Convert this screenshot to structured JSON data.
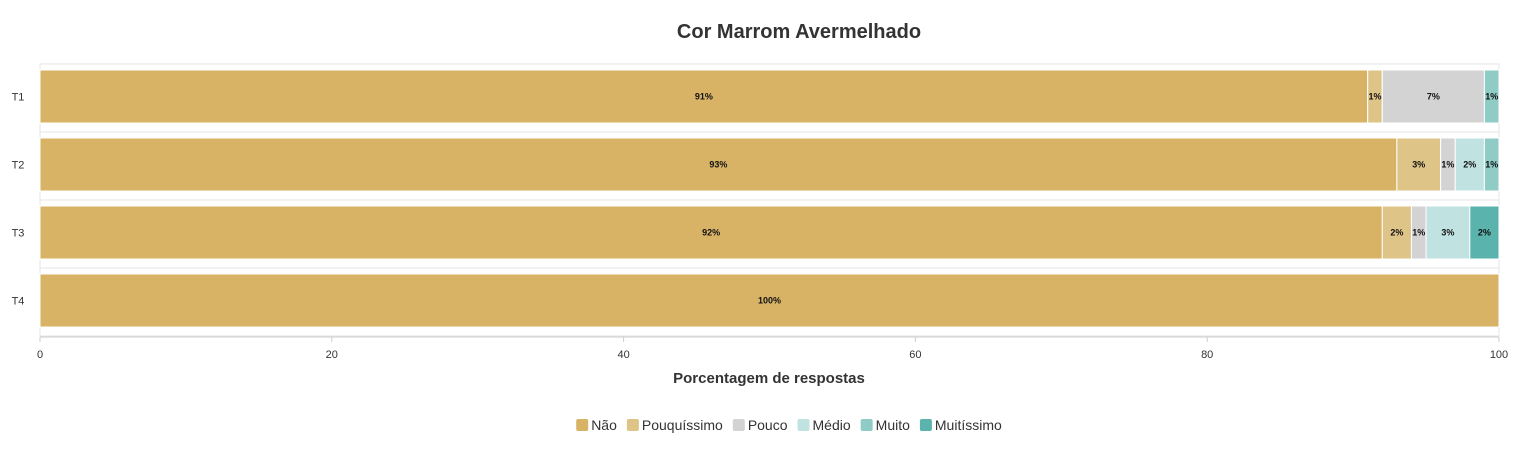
{
  "chart_data": {
    "type": "bar",
    "orientation": "horizontal",
    "stacked": true,
    "title": "Cor Marrom Avermelhado",
    "xlabel": "Porcentagem de respostas",
    "ylabel": "",
    "xlim": [
      0,
      100
    ],
    "x_ticks": [
      "0",
      "20",
      "40",
      "60",
      "80",
      "100"
    ],
    "categories": [
      "T1",
      "T2",
      "T3",
      "T4"
    ],
    "series": [
      {
        "name": "Não",
        "color": "#d8b366",
        "values": [
          91,
          93,
          92,
          100
        ],
        "labels": [
          "91%",
          "93%",
          "92%",
          "100%"
        ]
      },
      {
        "name": "Pouquíssimo",
        "color": "#dfc488",
        "values": [
          1,
          3,
          2,
          0
        ],
        "labels": [
          "1%",
          "3%",
          "2%",
          ""
        ]
      },
      {
        "name": "Pouco",
        "color": "#d3d3d3",
        "values": [
          7,
          1,
          1,
          0
        ],
        "labels": [
          "7%",
          "1%",
          "1%",
          ""
        ]
      },
      {
        "name": "Médio",
        "color": "#c0e3e1",
        "values": [
          0,
          2,
          3,
          0
        ],
        "labels": [
          "",
          "2%",
          "3%",
          ""
        ]
      },
      {
        "name": "Muito",
        "color": "#8fccc6",
        "values": [
          1,
          1,
          0,
          0
        ],
        "labels": [
          "1%",
          "1%",
          "",
          ""
        ]
      },
      {
        "name": "Muitíssimo",
        "color": "#5ab3ad",
        "values": [
          0,
          0,
          2,
          0
        ],
        "labels": [
          "",
          "",
          "2%",
          ""
        ]
      }
    ],
    "grid": false,
    "legend_position": "bottom-center"
  }
}
